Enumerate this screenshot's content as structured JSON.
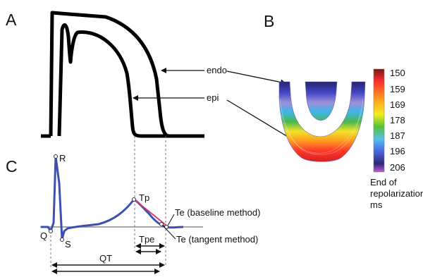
{
  "panels": {
    "a": "A",
    "b": "B",
    "c": "C"
  },
  "panel_a": {
    "endo_label": "endo",
    "epi_label": "epi"
  },
  "panel_b": {
    "colorbar": {
      "ticks": [
        "150",
        "159",
        "169",
        "178",
        "187",
        "196",
        "206"
      ],
      "colors": [
        "#7a1616",
        "#ff2e2e",
        "#ffa21f",
        "#f4ec22",
        "#55c234",
        "#53c0ec",
        "#4a66e0",
        "#2b2878",
        "#c55bd6"
      ],
      "caption": [
        "End of",
        "repolarization,",
        "ms"
      ]
    }
  },
  "panel_c": {
    "labels": {
      "r": "R",
      "q": "Q",
      "s": "S",
      "tp": "Tp",
      "te_baseline": "Te (baseline method)",
      "te_tangent": "Te (tangent method)",
      "tpe": "Tpe",
      "qt": "QT"
    },
    "colors": {
      "ecg": "#3d4fb1",
      "tangent": "#d63a6b",
      "baseline": "#888888"
    }
  }
}
